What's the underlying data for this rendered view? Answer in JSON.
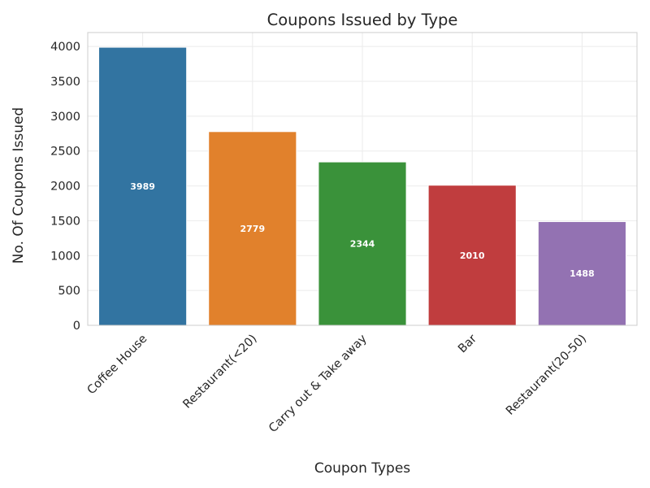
{
  "chart_data": {
    "type": "bar",
    "title": "Coupons Issued by Type",
    "xlabel": "Coupon Types",
    "ylabel": "No. Of Coupons Issued",
    "categories": [
      "Coffee House",
      "Restaurant(<20)",
      "Carry out & Take away",
      "Bar",
      "Restaurant(20-50)"
    ],
    "values": [
      3989,
      2779,
      2344,
      2010,
      1488
    ],
    "data_labels": [
      "3989",
      "2779",
      "2344",
      "2010",
      "1488"
    ],
    "colors": [
      "#3274a1",
      "#e1812c",
      "#3a923a",
      "#c03d3e",
      "#9372b2"
    ],
    "ylim": [
      0,
      4200
    ],
    "yticks": [
      0,
      500,
      1000,
      1500,
      2000,
      2500,
      3000,
      3500,
      4000
    ],
    "grid": true,
    "legend": "none"
  }
}
